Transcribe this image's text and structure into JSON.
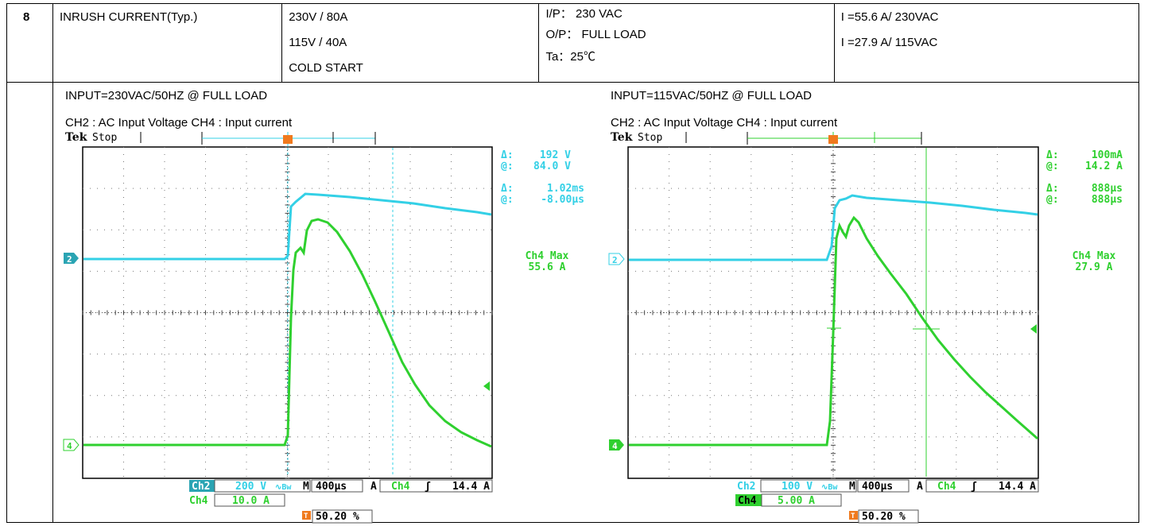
{
  "row": {
    "no": "8",
    "item": "INRUSH CURRENT(Typ.)",
    "spec": [
      "230V / 80A",
      "115V / 40A",
      "COLD START"
    ],
    "condition": [
      "I/P：  230 VAC",
      "O/P： FULL LOAD",
      "Ta：25℃"
    ],
    "result": [
      "I =55.6 A/ 230VAC",
      "I =27.9 A/ 115VAC"
    ]
  },
  "colors": {
    "ch2": "#33d0e6",
    "ch4": "#2fd02f",
    "trigger": "#f07a1e",
    "grid": "#555555"
  },
  "scopes": [
    {
      "title": "INPUT=230VAC/50HZ @ FULL LOAD",
      "channels": "CH2 : AC Input Voltage    CH4 : Input current",
      "brand": "Tek",
      "state": "Stop",
      "cursor_color": "#33d0e6",
      "cursor1_delta_label": "Δ:",
      "cursor1_delta": "192 V",
      "cursor1_at_label": "@:",
      "cursor1_at": "84.0 V",
      "cursor2_delta_label": "Δ:",
      "cursor2_delta": "1.02ms",
      "cursor2_at_label": "@:",
      "cursor2_at": "-8.00µs",
      "max_label": "Ch4 Max",
      "max_value": "55.6 A",
      "ch2_marker": "2",
      "ch4_marker": "4",
      "ch2_label": "Ch2",
      "ch2_scale": "200 V",
      "ch2_bw": "∿Bw",
      "time_prefix": "M",
      "timebase": "400µs",
      "trig_mode": "A",
      "trig_source": "Ch4",
      "trig_slope": "ʃ",
      "trig_level": "14.4 A",
      "ch4_label": "Ch4",
      "ch4_scale": "10.0 A",
      "trig_marker": "T",
      "trig_pos": "50.20 %"
    },
    {
      "title": "INPUT=115VAC/50HZ @ FULL LOAD",
      "channels": "CH2 : AC Input Voltage    CH4 : Input current",
      "brand": "Tek",
      "state": "Stop",
      "cursor_color": "#2fd02f",
      "cursor1_delta_label": "Δ:",
      "cursor1_delta": "100mA",
      "cursor1_at_label": "@:",
      "cursor1_at": "14.2 A",
      "cursor2_delta_label": "Δ:",
      "cursor2_delta": "888µs",
      "cursor2_at_label": "@:",
      "cursor2_at": "888µs",
      "max_label": "Ch4 Max",
      "max_value": "27.9 A",
      "ch2_marker": "2",
      "ch4_marker": "4",
      "ch2_label": "Ch2",
      "ch2_scale": "100 V",
      "ch2_bw": "∿Bw",
      "time_prefix": "M",
      "timebase": "400µs",
      "trig_mode": "A",
      "trig_source": "Ch4",
      "trig_slope": "ʃ",
      "trig_level": "14.4 A",
      "ch4_label": "Ch4",
      "ch4_scale": "5.00 A",
      "trig_marker": "T",
      "trig_pos": "50.20 %"
    }
  ]
}
